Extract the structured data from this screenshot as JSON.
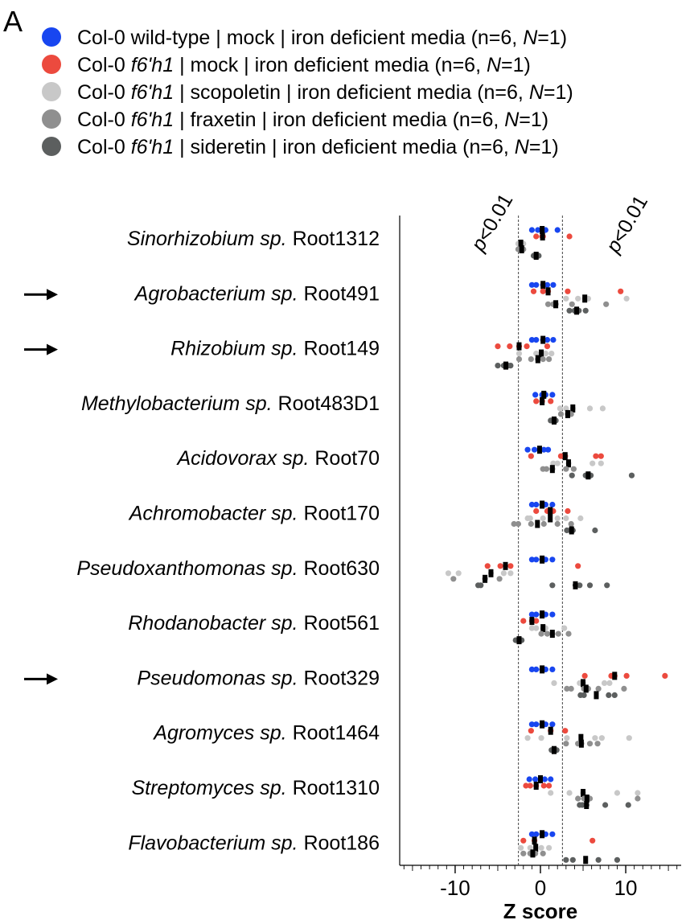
{
  "panel_label": "A",
  "colors": {
    "wildtype_mock": "#1846f0",
    "f6h1_mock": "#ec4a3e",
    "f6h1_scopoletin": "#c8c8c8",
    "f6h1_fraxetin": "#8f8f8f",
    "f6h1_sideretin": "#5c5f5f",
    "median": "#000000"
  },
  "legend": [
    {
      "key": "wildtype_mock",
      "parts": [
        {
          "t": "Col-0 wild-type | mock | iron deficient media (n=6, ",
          "i": false
        },
        {
          "t": "N",
          "i": true
        },
        {
          "t": "=1)",
          "i": false
        }
      ]
    },
    {
      "key": "f6h1_mock",
      "parts": [
        {
          "t": "Col-0 ",
          "i": false
        },
        {
          "t": "f6'h1",
          "i": true
        },
        {
          "t": " | mock | iron deficient media (n=6, ",
          "i": false
        },
        {
          "t": "N",
          "i": true
        },
        {
          "t": "=1)",
          "i": false
        }
      ]
    },
    {
      "key": "f6h1_scopoletin",
      "parts": [
        {
          "t": "Col-0 ",
          "i": false
        },
        {
          "t": "f6'h1",
          "i": true
        },
        {
          "t": " | scopoletin | iron deficient media (n=6, ",
          "i": false
        },
        {
          "t": "N",
          "i": true
        },
        {
          "t": "=1)",
          "i": false
        }
      ]
    },
    {
      "key": "f6h1_fraxetin",
      "parts": [
        {
          "t": "Col-0 ",
          "i": false
        },
        {
          "t": "f6'h1",
          "i": true
        },
        {
          "t": " | fraxetin | iron deficient media (n=6, ",
          "i": false
        },
        {
          "t": "N",
          "i": true
        },
        {
          "t": "=1)",
          "i": false
        }
      ]
    },
    {
      "key": "f6h1_sideretin",
      "parts": [
        {
          "t": "Col-0 ",
          "i": false
        },
        {
          "t": "f6'h1",
          "i": true
        },
        {
          "t": " | sideretin | iron deficient media (n=6, ",
          "i": false
        },
        {
          "t": "N",
          "i": true
        },
        {
          "t": "=1)",
          "i": false
        }
      ]
    }
  ],
  "chart_data": {
    "type": "scatter",
    "xlabel": "Z score",
    "xlim": [
      -16.5,
      16.5
    ],
    "xticks": [
      -10,
      0,
      10
    ],
    "threshold_lines": [
      -2.58,
      2.58
    ],
    "threshold_label": "p<0.01",
    "series": [
      {
        "key": "wildtype_mock",
        "name": "Col-0 wild-type | mock | iron deficient media"
      },
      {
        "key": "f6h1_mock",
        "name": "Col-0 f6'h1 | mock | iron deficient media"
      },
      {
        "key": "f6h1_scopoletin",
        "name": "Col-0 f6'h1 | scopoletin | iron deficient media"
      },
      {
        "key": "f6h1_fraxetin",
        "name": "Col-0 f6'h1 | fraxetin | iron deficient media"
      },
      {
        "key": "f6h1_sideretin",
        "name": "Col-0 f6'h1 | sideretin | iron deficient media"
      }
    ],
    "categories": [
      {
        "genus": "Sinorhizobium sp.",
        "strain": "Root1312",
        "arrow": false,
        "groups": {
          "wildtype_mock": [
            -1.0,
            -0.3,
            0.2,
            0.6,
            2.0
          ],
          "f6h1_mock": [
            -0.5,
            0.2,
            0.3,
            3.4
          ],
          "f6h1_scopoletin": [
            -2.6,
            -2.3,
            -2.0
          ],
          "f6h1_fraxetin": [
            -2.6,
            -2.2,
            -2.0
          ],
          "f6h1_sideretin": [
            -0.8,
            -0.5,
            -0.2
          ]
        }
      },
      {
        "genus": "Agrobacterium sp.",
        "strain": "Root491",
        "arrow": true,
        "groups": {
          "wildtype_mock": [
            -1.0,
            -0.5,
            0.3,
            0.8,
            1.5
          ],
          "f6h1_mock": [
            -0.8,
            0.3,
            0.9,
            3.2,
            9.4
          ],
          "f6h1_scopoletin": [
            3.0,
            4.4,
            5.2,
            5.6,
            10.1
          ],
          "f6h1_fraxetin": [
            0.9,
            1.5,
            1.8,
            3.7,
            7.7
          ],
          "f6h1_sideretin": [
            3.4,
            4.0,
            4.5,
            5.3
          ]
        }
      },
      {
        "genus": "Rhizobium sp.",
        "strain": "Root149",
        "arrow": true,
        "groups": {
          "wildtype_mock": [
            -1.0,
            -0.5,
            0.3,
            0.8,
            1.5
          ],
          "f6h1_mock": [
            -5.0,
            -3.6,
            -2.5,
            -1.6,
            0.8
          ],
          "f6h1_scopoletin": [
            -2.5,
            -0.5,
            0.1,
            0.6,
            1.3
          ],
          "f6h1_fraxetin": [
            -2.5,
            -1.1,
            -0.3,
            0.3,
            1.0
          ],
          "f6h1_sideretin": [
            -5.0,
            -4.3,
            -3.8,
            -3.5
          ]
        }
      },
      {
        "genus": "Methylobacterium sp.",
        "strain": "Root483D1",
        "arrow": false,
        "groups": {
          "wildtype_mock": [
            -0.6,
            0.2,
            0.6,
            1.4
          ],
          "f6h1_mock": [
            -0.5,
            0.2,
            1.2
          ],
          "f6h1_scopoletin": [
            2.3,
            3.0,
            3.8,
            5.8,
            7.3
          ],
          "f6h1_fraxetin": [
            2.4,
            3.2,
            3.6
          ],
          "f6h1_sideretin": [
            1.2,
            1.6,
            1.8
          ]
        }
      },
      {
        "genus": "Acidovorax sp.",
        "strain": "Root70",
        "arrow": false,
        "groups": {
          "wildtype_mock": [
            -1.5,
            -0.7,
            -0.1,
            0.4,
            0.9
          ],
          "f6h1_mock": [
            -1.1,
            2.4,
            2.9,
            6.5,
            7.1
          ],
          "f6h1_scopoletin": [
            1.5,
            2.0,
            3.3,
            6.1,
            7.1
          ],
          "f6h1_fraxetin": [
            0.3,
            0.7,
            1.4,
            3.0,
            3.9
          ],
          "f6h1_sideretin": [
            3.7,
            5.3,
            5.9,
            10.7
          ]
        }
      },
      {
        "genus": "Achromobacter sp.",
        "strain": "Root170",
        "arrow": false,
        "groups": {
          "wildtype_mock": [
            -1.0,
            -0.5,
            0.2,
            0.6,
            1.4
          ],
          "f6h1_mock": [
            -0.5,
            0.8,
            1.5,
            3.2
          ],
          "f6h1_scopoletin": [
            -1.5,
            -1.2,
            0.3,
            2.0,
            3.0,
            4.7
          ],
          "f6h1_fraxetin": [
            -3.1,
            -2.6,
            -1.1,
            0.4,
            2.0,
            3.6
          ],
          "f6h1_sideretin": [
            3.1,
            3.5,
            3.8,
            6.4
          ]
        }
      },
      {
        "genus": "Pseudoxanthomonas sp.",
        "strain": "Root630",
        "arrow": false,
        "groups": {
          "wildtype_mock": [
            -1.0,
            -0.5,
            0.2,
            0.6,
            1.4
          ],
          "f6h1_mock": [
            -6.2,
            -4.7,
            -3.5,
            4.4
          ],
          "f6h1_scopoletin": [
            -10.8,
            -9.6,
            -5.8,
            -4.3,
            -3.5
          ],
          "f6h1_fraxetin": [
            -10.2,
            -6.5,
            -4.8
          ],
          "f6h1_sideretin": [
            -7.3,
            -7.0,
            1.4,
            4.1,
            4.6,
            5.8,
            7.8
          ]
        }
      },
      {
        "genus": "Rhodanobacter sp.",
        "strain": "Root561",
        "arrow": false,
        "groups": {
          "wildtype_mock": [
            -1.0,
            -0.5,
            0.2,
            0.6,
            1.4
          ],
          "f6h1_mock": [
            -2.0,
            -1.0,
            -0.5
          ],
          "f6h1_scopoletin": [
            -1.0,
            -0.5,
            0.3,
            0.6,
            2.8
          ],
          "f6h1_fraxetin": [
            0.1,
            0.8,
            1.4,
            2.1,
            3.3
          ],
          "f6h1_sideretin": [
            -2.9,
            -2.5,
            -2.2
          ]
        }
      },
      {
        "genus": "Pseudomonas sp.",
        "strain": "Root329",
        "arrow": true,
        "groups": {
          "wildtype_mock": [
            -1.0,
            -0.5,
            0.2,
            0.6,
            1.4
          ],
          "f6h1_mock": [
            5.2,
            8.3,
            8.7,
            10.1,
            14.6
          ],
          "f6h1_scopoletin": [
            1.6,
            4.6,
            5.0,
            7.5,
            8.1
          ],
          "f6h1_fraxetin": [
            3.1,
            3.6,
            5.1,
            5.6,
            6.8,
            9.8
          ],
          "f6h1_sideretin": [
            4.7,
            5.1,
            8.0,
            8.7
          ]
        }
      },
      {
        "genus": "Agromyces sp.",
        "strain": "Root1464",
        "arrow": false,
        "groups": {
          "wildtype_mock": [
            -1.0,
            -0.5,
            0.2,
            0.6,
            1.4
          ],
          "f6h1_mock": [
            -1.1,
            1.2,
            2.9
          ],
          "f6h1_scopoletin": [
            -1.5,
            0.1,
            3.1,
            6.4,
            7.2,
            10.4
          ],
          "f6h1_fraxetin": [
            3.0,
            4.4,
            4.8,
            5.8,
            6.7
          ],
          "f6h1_sideretin": [
            1.3,
            1.6,
            1.9
          ]
        }
      },
      {
        "genus": "Streptomyces sp.",
        "strain": "Root1310",
        "arrow": false,
        "groups": {
          "wildtype_mock": [
            -1.3,
            -0.6,
            0.0,
            0.5,
            1.2
          ],
          "f6h1_mock": [
            -1.7,
            -1.2,
            -0.5,
            0.4,
            1.0
          ],
          "f6h1_scopoletin": [
            1.2,
            3.4,
            5.0,
            9.0,
            11.4
          ],
          "f6h1_fraxetin": [
            4.4,
            5.1,
            5.8,
            11.4
          ],
          "f6h1_sideretin": [
            4.6,
            4.9,
            5.4,
            7.6,
            10.3
          ]
        }
      },
      {
        "genus": "Flavobacterium sp.",
        "strain": "Root186",
        "arrow": false,
        "groups": {
          "wildtype_mock": [
            -1.0,
            -0.5,
            0.2,
            0.6,
            1.4
          ],
          "f6h1_mock": [
            -2.0,
            -0.7,
            6.1
          ],
          "f6h1_scopoletin": [
            -2.3,
            -1.2,
            0.1,
            1.0
          ],
          "f6h1_fraxetin": [
            -2.0,
            -1.2,
            -0.6,
            0.3
          ],
          "f6h1_sideretin": [
            3.0,
            3.8,
            6.8,
            9.0
          ]
        }
      }
    ]
  }
}
